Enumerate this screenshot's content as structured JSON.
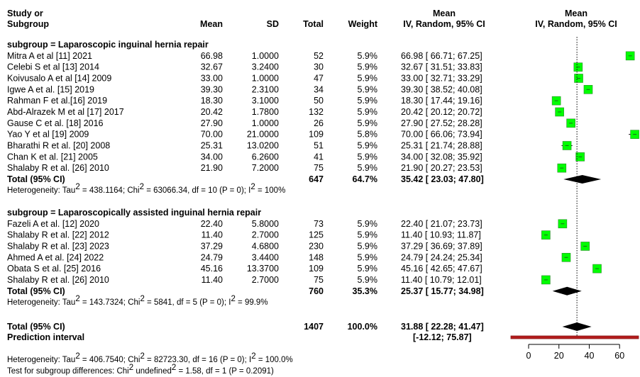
{
  "chart_data": {
    "type": "forest",
    "headers": {
      "study_line1": "Study or",
      "study_line2": "Subgroup",
      "mean": "Mean",
      "sd": "SD",
      "total": "Total",
      "weight": "Weight",
      "effect_line1": "Mean",
      "effect_line2": "IV, Random, 95% CI",
      "plot_line1": "Mean",
      "plot_line2": "IV, Random, 95% CI"
    },
    "axis": {
      "min": 0,
      "max": 60,
      "ticks": [
        "0",
        "20",
        "40",
        "60"
      ],
      "reference_value": 31.88
    },
    "colors": {
      "marker": "#00ff00",
      "marker_border": "#2e8b2e",
      "diamond": "#000000",
      "prediction_fill": "#b31b1b",
      "prediction_stroke": "#8b1a1a"
    },
    "subgroups": [
      {
        "title": "subgroup = Laparoscopic inguinal hernia repair",
        "studies": [
          {
            "study": "Mitra A et al [11] 2021",
            "mean": "66.98",
            "sd": "1.0000",
            "total": "52",
            "weight": "5.9%",
            "ci_text": "66.98 [ 66.71; 67.25]",
            "est": 66.98,
            "lo": 66.71,
            "hi": 67.25
          },
          {
            "study": "Celebi S et al [13] 2014",
            "mean": "32.67",
            "sd": "3.2400",
            "total": "30",
            "weight": "5.9%",
            "ci_text": "32.67 [ 31.51; 33.83]",
            "est": 32.67,
            "lo": 31.51,
            "hi": 33.83
          },
          {
            "study": "Koivusalo A et al [14] 2009",
            "mean": "33.00",
            "sd": "1.0000",
            "total": "47",
            "weight": "5.9%",
            "ci_text": "33.00 [ 32.71; 33.29]",
            "est": 33.0,
            "lo": 32.71,
            "hi": 33.29
          },
          {
            "study": "Igwe A et al. [15] 2019",
            "mean": "39.30",
            "sd": "2.3100",
            "total": "34",
            "weight": "5.9%",
            "ci_text": "39.30 [ 38.52; 40.08]",
            "est": 39.3,
            "lo": 38.52,
            "hi": 40.08
          },
          {
            "study": "Rahman F et al.[16] 2019",
            "mean": "18.30",
            "sd": "3.1000",
            "total": "50",
            "weight": "5.9%",
            "ci_text": "18.30 [ 17.44; 19.16]",
            "est": 18.3,
            "lo": 17.44,
            "hi": 19.16
          },
          {
            "study": "Abd-Alrazek M et al [17] 2017",
            "mean": "20.42",
            "sd": "1.7800",
            "total": "132",
            "weight": "5.9%",
            "ci_text": "20.42 [ 20.12; 20.72]",
            "est": 20.42,
            "lo": 20.12,
            "hi": 20.72
          },
          {
            "study": "Gause C et al. [18] 2016",
            "mean": "27.90",
            "sd": "1.0000",
            "total": "26",
            "weight": "5.9%",
            "ci_text": "27.90 [ 27.52; 28.28]",
            "est": 27.9,
            "lo": 27.52,
            "hi": 28.28
          },
          {
            "study": "Yao Y et al [19] 2009",
            "mean": "70.00",
            "sd": "21.0000",
            "total": "109",
            "weight": "5.8%",
            "ci_text": "70.00 [ 66.06; 73.94]",
            "est": 70.0,
            "lo": 66.06,
            "hi": 73.94
          },
          {
            "study": "Bharathi R et al. [20] 2008",
            "mean": "25.31",
            "sd": "13.0200",
            "total": "51",
            "weight": "5.9%",
            "ci_text": "25.31 [ 21.74; 28.88]",
            "est": 25.31,
            "lo": 21.74,
            "hi": 28.88
          },
          {
            "study": "Chan K et al. [21] 2005",
            "mean": "34.00",
            "sd": "6.2600",
            "total": "41",
            "weight": "5.9%",
            "ci_text": "34.00 [ 32.08; 35.92]",
            "est": 34.0,
            "lo": 32.08,
            "hi": 35.92
          },
          {
            "study": "Shalaby R et al. [26] 2010",
            "mean": "21.90",
            "sd": "7.2000",
            "total": "75",
            "weight": "5.9%",
            "ci_text": "21.90 [ 20.27; 23.53]",
            "est": 21.9,
            "lo": 20.27,
            "hi": 23.53
          }
        ],
        "total": {
          "label": "Total (95% CI)",
          "n": "647",
          "weight": "64.7%",
          "ci_text": "35.42 [ 23.03; 47.80]",
          "est": 35.42,
          "lo": 23.03,
          "hi": 47.8
        },
        "het": {
          "prefix": "Heterogeneity: Tau",
          "tau2": "= 438.1164; Chi",
          "chi2": "= 63066.34, df = 10 (P = 0); I",
          "i2": "= 100%"
        }
      },
      {
        "title": "subgroup = Laparoscopically assisted inguinal hernia repair",
        "studies": [
          {
            "study": "Fazeli A et al. [12] 2020",
            "mean": "22.40",
            "sd": "5.8000",
            "total": "73",
            "weight": "5.9%",
            "ci_text": "22.40 [ 21.07; 23.73]",
            "est": 22.4,
            "lo": 21.07,
            "hi": 23.73
          },
          {
            "study": "Shalaby R et al. [22] 2012",
            "mean": "11.40",
            "sd": "2.7000",
            "total": "125",
            "weight": "5.9%",
            "ci_text": "11.40 [ 10.93; 11.87]",
            "est": 11.4,
            "lo": 10.93,
            "hi": 11.87
          },
          {
            "study": "Shalaby R et al. [23] 2023",
            "mean": "37.29",
            "sd": "4.6800",
            "total": "230",
            "weight": "5.9%",
            "ci_text": "37.29 [ 36.69; 37.89]",
            "est": 37.29,
            "lo": 36.69,
            "hi": 37.89
          },
          {
            "study": "Ahmed A et al. [24] 2022",
            "mean": "24.79",
            "sd": "3.4400",
            "total": "148",
            "weight": "5.9%",
            "ci_text": "24.79 [ 24.24; 25.34]",
            "est": 24.79,
            "lo": 24.24,
            "hi": 25.34
          },
          {
            "study": "Obata S et al. [25] 2016",
            "mean": "45.16",
            "sd": "13.3700",
            "total": "109",
            "weight": "5.9%",
            "ci_text": "45.16 [ 42.65; 47.67]",
            "est": 45.16,
            "lo": 42.65,
            "hi": 47.67
          },
          {
            "study": "Shalaby R et al. [26] 2010",
            "mean": "11.40",
            "sd": "2.7000",
            "total": "75",
            "weight": "5.9%",
            "ci_text": "11.40 [ 10.79; 12.01]",
            "est": 11.4,
            "lo": 10.79,
            "hi": 12.01
          }
        ],
        "total": {
          "label": "Total (95% CI)",
          "n": "760",
          "weight": "35.3%",
          "ci_text": "25.37 [ 15.77; 34.98]",
          "est": 25.37,
          "lo": 15.77,
          "hi": 34.98
        },
        "het": {
          "prefix": "Heterogeneity: Tau",
          "tau2": "= 143.7324; Chi",
          "chi2": "= 5841, df = 5 (P = 0); I",
          "i2": "= 99.9%"
        }
      }
    ],
    "overall": {
      "label": "Total (95% CI)",
      "n": "1407",
      "weight": "100.0%",
      "ci_text": "31.88 [ 22.28; 41.47]",
      "est": 31.88,
      "lo": 22.28,
      "hi": 41.47
    },
    "prediction": {
      "label": "Prediction interval",
      "ci_text": "[-12.12; 75.87]",
      "lo": -12.12,
      "hi": 75.87
    },
    "footer": {
      "het": {
        "prefix": "Heterogeneity: Tau",
        "tau2": "= 406.7540; Chi",
        "chi2": "= 82723.30, df = 16 (P = 0); I",
        "i2": "= 100.0%"
      },
      "test": {
        "prefix": "Test for subgroup differences: Chi",
        "chi2": "= 1.58, df = 1 (P = 0.2091)"
      }
    }
  }
}
